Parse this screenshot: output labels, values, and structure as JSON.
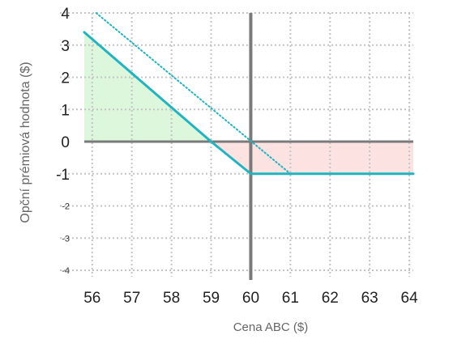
{
  "chart_data": {
    "type": "line",
    "title": "",
    "xlabel": "Cena ABC ($)",
    "ylabel": "Opční prémiová hodnota ($)",
    "x_ticks": [
      "56",
      "57",
      "58",
      "59",
      "60",
      "61",
      "62",
      "63",
      "64"
    ],
    "y_ticks": [
      "4",
      "3",
      "2",
      "1",
      "0",
      "-1",
      "-2",
      "-3",
      "-4"
    ],
    "xlim": [
      55.8,
      64.1
    ],
    "ylim": [
      -4,
      4
    ],
    "grid": true,
    "strike": 60,
    "breakeven": 59,
    "series": [
      {
        "style": "solid",
        "color": "#1fb5c0",
        "x": [
          55.8,
          59,
          60,
          64.1
        ],
        "y": [
          3.4,
          0,
          -1,
          -1
        ]
      },
      {
        "style": "dotted",
        "color": "#1fb5c0",
        "x": [
          56.1,
          61,
          64.1
        ],
        "y": [
          4,
          -1,
          -1
        ]
      }
    ],
    "profit_region": {
      "x": [
        55.8,
        59
      ],
      "color": "#dcf7dc"
    },
    "loss_region": {
      "x": [
        59,
        64.1
      ],
      "color": "#fde2e2"
    }
  }
}
